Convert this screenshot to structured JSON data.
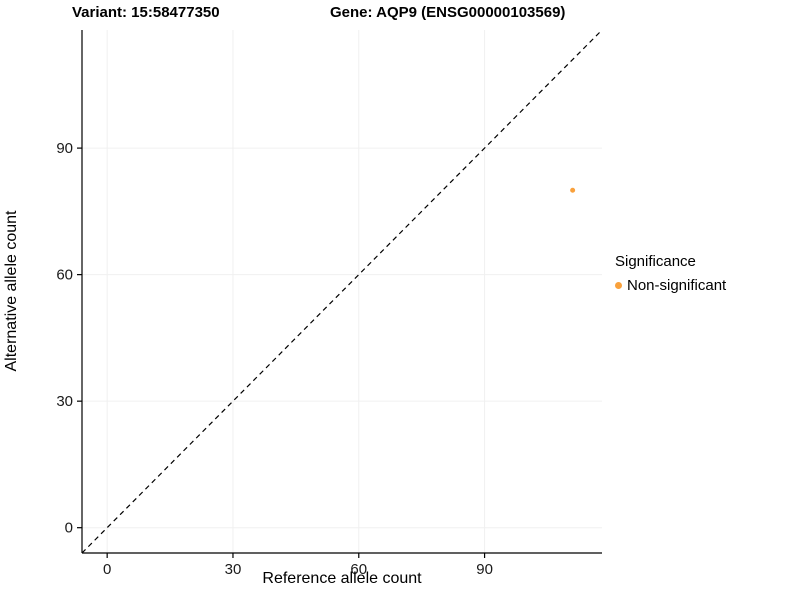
{
  "chart_data": {
    "type": "scatter",
    "title_left": "Variant: 15:58477350",
    "title_right": "Gene: AQP9 (ENSG00000103569)",
    "xlabel": "Reference allele count",
    "ylabel": "Alternative allele count",
    "xlim": [
      -6,
      118
    ],
    "ylim": [
      -6,
      118
    ],
    "xticks": [
      0,
      30,
      60,
      90
    ],
    "yticks": [
      0,
      30,
      60,
      90
    ],
    "grid": "faint",
    "gridline_color": "#f0f0f0",
    "identity_line": {
      "style": "dashed",
      "color": "#000000",
      "from": [
        -6,
        -6
      ],
      "to": [
        118,
        118
      ]
    },
    "points": [
      {
        "x": 111,
        "y": 80,
        "series": "Non-significant",
        "color": "#F9A13C"
      }
    ],
    "legend": {
      "title": "Significance",
      "position": "right",
      "entries": [
        {
          "label": "Non-significant",
          "color": "#F9A13C"
        }
      ]
    }
  }
}
